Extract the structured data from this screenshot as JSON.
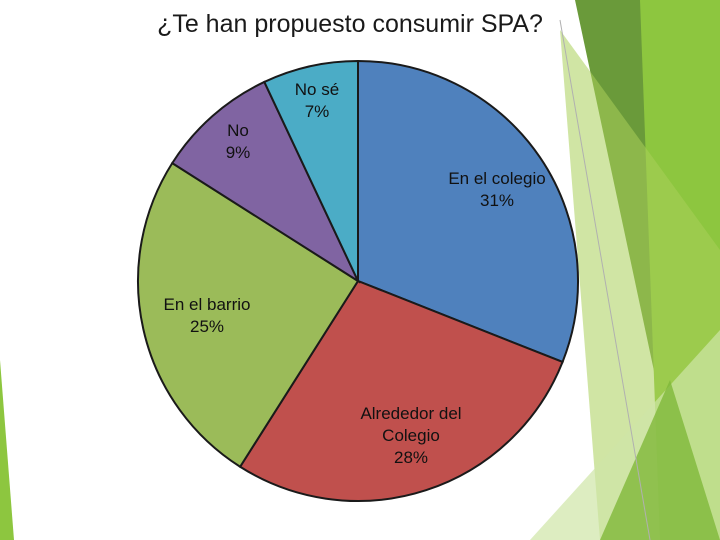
{
  "chart_data": {
    "type": "pie",
    "title": "¿Te han propuesto consumir SPA?",
    "slices": [
      {
        "label_lines": [
          "En el colegio",
          "31%"
        ],
        "value": 31,
        "color": "#4f81bd"
      },
      {
        "label_lines": [
          "Alrededor del",
          "Colegio",
          "28%"
        ],
        "value": 28,
        "color": "#c0504d"
      },
      {
        "label_lines": [
          "En el barrio",
          "25%"
        ],
        "value": 25,
        "color": "#9bbb59"
      },
      {
        "label_lines": [
          "No",
          "9%"
        ],
        "value": 9,
        "color": "#8064a2"
      },
      {
        "label_lines": [
          "No sé",
          "7%"
        ],
        "value": 7,
        "color": "#4bacc6"
      }
    ],
    "legend": "none"
  },
  "colors": {
    "accent_green": "#8dc63f",
    "accent_dark_green": "#6a9a3a"
  }
}
